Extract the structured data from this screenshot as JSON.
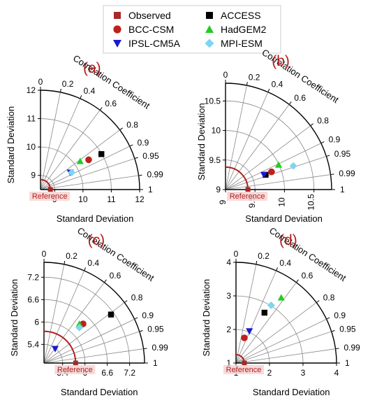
{
  "legend": {
    "entries": [
      {
        "name": "Observed",
        "marker": "square",
        "color": "#a52a2a"
      },
      {
        "name": "ACCESS",
        "marker": "square",
        "color": "#000000"
      },
      {
        "name": "BCC-CSM",
        "marker": "circle",
        "color": "#c0201a"
      },
      {
        "name": "HadGEM2",
        "marker": "triangle",
        "color": "#22cc22"
      },
      {
        "name": "IPSL-CM5A",
        "marker": "triangle-down",
        "color": "#1a1acc"
      },
      {
        "name": "MPI-ESM",
        "marker": "diamond",
        "color": "#80d4f0"
      }
    ]
  },
  "colors": {
    "reference_arc": "#b01e1e",
    "grid": "#888888",
    "axis": "#000000"
  },
  "chart_data": [
    {
      "type": "taylor",
      "panel_label": "(a)",
      "xlabel": "Standard Deviation",
      "ylabel": "Standard Deviation",
      "corr_label": "Correlation Coefficient",
      "reference_label": "Reference",
      "sd_min": 8.5,
      "sd_max": 12,
      "radial_ticks": [
        9,
        10,
        11,
        12
      ],
      "corr_ticks": [
        "0",
        "0.2",
        "0.4",
        "0.6",
        "0.8",
        "0.9",
        "0.95",
        "0.99",
        "1"
      ],
      "reference_sd": 8.85,
      "points": [
        {
          "model": "ACCESS",
          "x": 10.65,
          "y": 9.75
        },
        {
          "model": "BCC-CSM",
          "x": 10.2,
          "y": 9.55
        },
        {
          "model": "HadGEM2",
          "x": 9.9,
          "y": 9.5
        },
        {
          "model": "IPSL-CM5A",
          "x": 9.55,
          "y": 9.1
        },
        {
          "model": "MPI-ESM",
          "x": 9.6,
          "y": 9.1
        }
      ]
    },
    {
      "type": "taylor",
      "panel_label": "(b)",
      "xlabel": "Standard Deviation",
      "ylabel": "Standard Deviation",
      "corr_label": "Correlation Coefficient",
      "reference_label": "Reference",
      "sd_min": 9.0,
      "sd_max": 10.8,
      "radial_ticks": [
        9.0,
        9.5,
        10.0,
        10.5
      ],
      "corr_ticks": [
        "0",
        "0.2",
        "0.4",
        "0.6",
        "0.8",
        "0.9",
        "0.95",
        "0.99",
        "1"
      ],
      "reference_sd": 9.38,
      "points": [
        {
          "model": "ACCESS",
          "x": 9.68,
          "y": 9.25
        },
        {
          "model": "BCC-CSM",
          "x": 9.78,
          "y": 9.3
        },
        {
          "model": "HadGEM2",
          "x": 9.9,
          "y": 9.42
        },
        {
          "model": "IPSL-CM5A",
          "x": 9.65,
          "y": 9.25
        },
        {
          "model": "MPI-ESM",
          "x": 10.15,
          "y": 9.4
        }
      ]
    },
    {
      "type": "taylor",
      "panel_label": "(c)",
      "xlabel": "Standard Deviation",
      "ylabel": "Standard Deviation",
      "corr_label": "Correlation Coefficient",
      "reference_label": "Reference",
      "sd_min": 4.9,
      "sd_max": 7.6,
      "radial_ticks": [
        5.4,
        6.0,
        6.6,
        7.2
      ],
      "corr_ticks": [
        "0",
        "0.2",
        "0.4",
        "0.6",
        "0.8",
        "0.9",
        "0.95",
        "0.99",
        "1"
      ],
      "reference_sd": 5.75,
      "points": [
        {
          "model": "ACCESS",
          "x": 6.7,
          "y": 6.2
        },
        {
          "model": "BCC-CSM",
          "x": 5.95,
          "y": 5.95
        },
        {
          "model": "HadGEM2",
          "x": 5.85,
          "y": 5.95
        },
        {
          "model": "IPSL-CM5A",
          "x": 5.2,
          "y": 5.28
        },
        {
          "model": "MPI-ESM",
          "x": 5.85,
          "y": 5.85
        }
      ]
    },
    {
      "type": "taylor",
      "panel_label": "(d)",
      "xlabel": "Standard Deviation",
      "ylabel": "Standard Deviation",
      "corr_label": "Correlation Coefficient",
      "reference_label": "Reference",
      "sd_min": 1,
      "sd_max": 4,
      "radial_ticks": [
        1,
        2,
        3,
        4
      ],
      "corr_ticks": [
        "0",
        "0.2",
        "0.4",
        "0.6",
        "0.8",
        "0.9",
        "0.95",
        "0.99",
        "1"
      ],
      "reference_sd": 1.25,
      "points": [
        {
          "model": "ACCESS",
          "x": 1.85,
          "y": 2.5
        },
        {
          "model": "BCC-CSM",
          "x": 1.25,
          "y": 1.75
        },
        {
          "model": "HadGEM2",
          "x": 2.35,
          "y": 2.95
        },
        {
          "model": "IPSL-CM5A",
          "x": 1.4,
          "y": 1.95
        },
        {
          "model": "MPI-ESM",
          "x": 2.05,
          "y": 2.72
        }
      ]
    }
  ]
}
